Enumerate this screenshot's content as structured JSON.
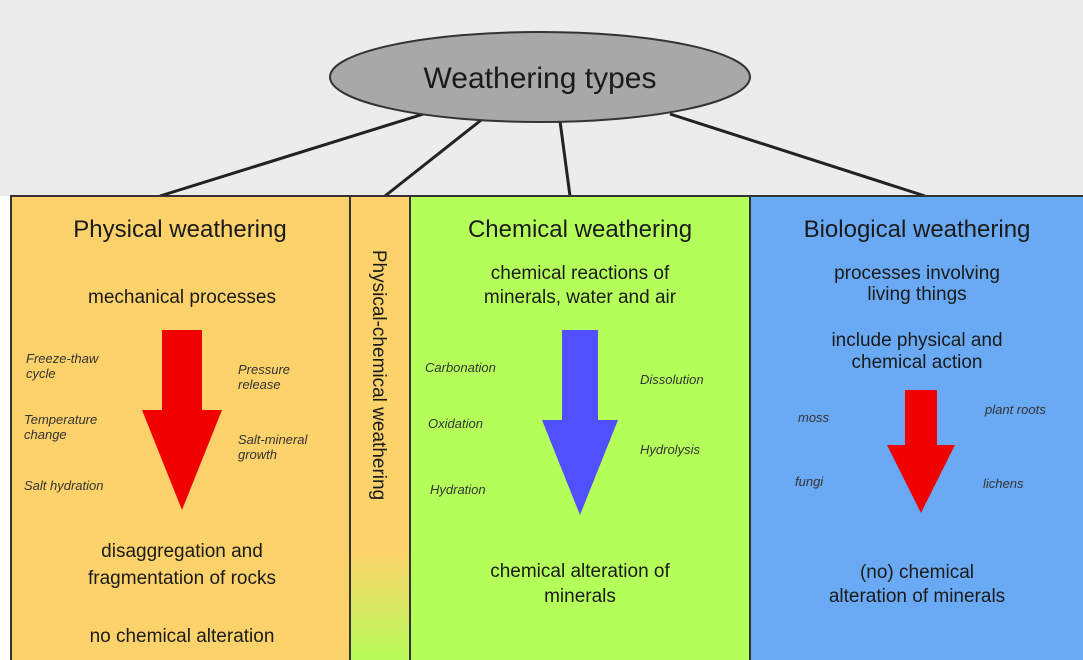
{
  "title": "Weathering types",
  "physical": {
    "title": "Physical weathering",
    "subtitle": [
      "mechanical processes"
    ],
    "processes": [
      [
        "Freeze-thaw",
        "cycle"
      ],
      [
        "Pressure",
        "release"
      ],
      [
        "Temperature",
        "change"
      ],
      [
        "Salt-mineral",
        "growth"
      ],
      [
        "Salt hydration"
      ]
    ],
    "outcome": [
      "disaggregation and",
      "fragmentation of rocks"
    ],
    "note": "no chemical alteration"
  },
  "physical_chemical": {
    "title": "Physical-chemical weathering"
  },
  "chemical": {
    "title": "Chemical weathering",
    "subtitle": [
      "chemical reactions of",
      "minerals, water and air"
    ],
    "processes": [
      "Carbonation",
      "Dissolution",
      "Oxidation",
      "Hydrolysis",
      "Hydration"
    ],
    "outcome": [
      "chemical alteration of",
      "minerals"
    ]
  },
  "biological": {
    "title": "Biological weathering",
    "subtitle": [
      "processes involving",
      "living things"
    ],
    "subtitle2": [
      "include physical and",
      "chemical action"
    ],
    "processes": [
      "moss",
      "plant roots",
      "fungi",
      "lichens"
    ],
    "outcome": [
      "(no) chemical",
      "alteration of minerals"
    ]
  }
}
